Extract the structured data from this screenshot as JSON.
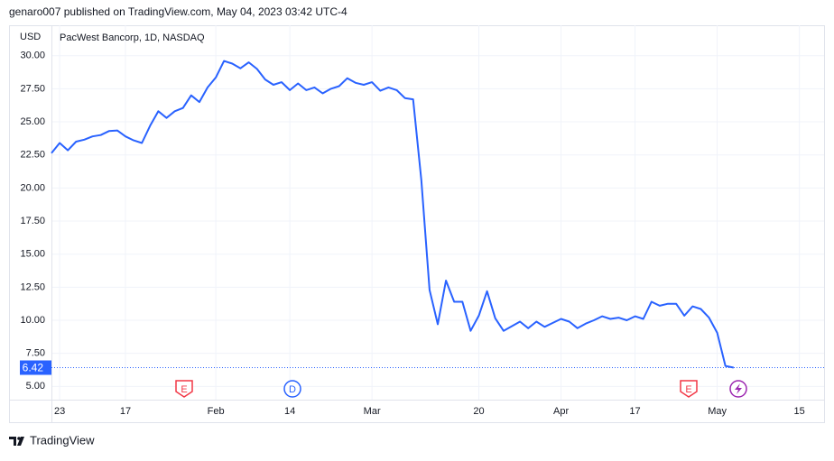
{
  "header": "genaro007 published on TradingView.com, May 04, 2023 03:42 UTC-4",
  "footer": "TradingView",
  "chart_data": {
    "type": "line",
    "title": "PacWest Bancorp, 1D, NASDAQ",
    "y_label": "USD",
    "categories": [
      null,
      "23",
      null,
      null,
      null,
      null,
      null,
      null,
      null,
      "17",
      null,
      null,
      null,
      null,
      null,
      null,
      null,
      null,
      null,
      null,
      "Feb",
      null,
      null,
      null,
      null,
      null,
      null,
      null,
      null,
      "14",
      null,
      null,
      null,
      null,
      null,
      null,
      null,
      null,
      null,
      "Mar",
      null,
      null,
      null,
      null,
      null,
      null,
      null,
      null,
      null,
      null,
      null,
      null,
      "20",
      null,
      null,
      null,
      null,
      null,
      null,
      null,
      null,
      null,
      "Apr",
      null,
      null,
      null,
      null,
      null,
      null,
      null,
      null,
      "17",
      null,
      null,
      null,
      null,
      null,
      null,
      null,
      null,
      null,
      "May",
      null,
      null,
      null,
      null,
      null,
      null,
      null,
      null,
      null,
      "15",
      null,
      null,
      null
    ],
    "series": [
      {
        "name": "PacWest Bancorp",
        "color": "#2962ff",
        "values": [
          22.64,
          23.4,
          22.85,
          23.5,
          23.65,
          23.9,
          24.0,
          24.3,
          24.35,
          23.9,
          23.6,
          23.4,
          24.7,
          25.8,
          25.3,
          25.8,
          26.05,
          27.0,
          26.5,
          27.6,
          28.35,
          29.6,
          29.4,
          29.05,
          29.5,
          29.0,
          28.2,
          27.8,
          28.0,
          27.4,
          27.9,
          27.4,
          27.6,
          27.15,
          27.5,
          27.7,
          28.3,
          27.95,
          27.8,
          28.0,
          27.35,
          27.6,
          27.4,
          26.8,
          26.7,
          20.6,
          12.3,
          9.7,
          13.0,
          11.4,
          11.4,
          9.2,
          10.35,
          12.2,
          10.15,
          9.2,
          9.55,
          9.9,
          9.4,
          9.9,
          9.5,
          9.8,
          10.1,
          9.9,
          9.4,
          9.75,
          10.0,
          10.3,
          10.1,
          10.2,
          10.0,
          10.3,
          10.1,
          11.4,
          11.1,
          11.25,
          11.25,
          10.35,
          11.05,
          10.85,
          10.2,
          9.05,
          6.55,
          6.42,
          null,
          null,
          null,
          null,
          null,
          null,
          null,
          null,
          null,
          null,
          null
        ]
      }
    ],
    "ylim": [
      4,
      32.3
    ],
    "yticks": [
      {
        "value": 5,
        "label": "5.00"
      },
      {
        "value": 7.5,
        "label": "7.50"
      },
      {
        "value": 10,
        "label": "10.00"
      },
      {
        "value": 12.5,
        "label": "12.50"
      },
      {
        "value": 15,
        "label": "15.00"
      },
      {
        "value": 17.5,
        "label": "17.50"
      },
      {
        "value": 20,
        "label": "20.00"
      },
      {
        "value": 22.5,
        "label": "22.50"
      },
      {
        "value": 25,
        "label": "25.00"
      },
      {
        "value": 27.5,
        "label": "27.50"
      },
      {
        "value": 30,
        "label": "30.00"
      }
    ],
    "grid": true,
    "events": [
      {
        "label": "E",
        "color": "#f23645"
      },
      {
        "label": "D",
        "color": "#2962ff"
      },
      {
        "label": "E",
        "color": "#f23645"
      }
    ]
  }
}
